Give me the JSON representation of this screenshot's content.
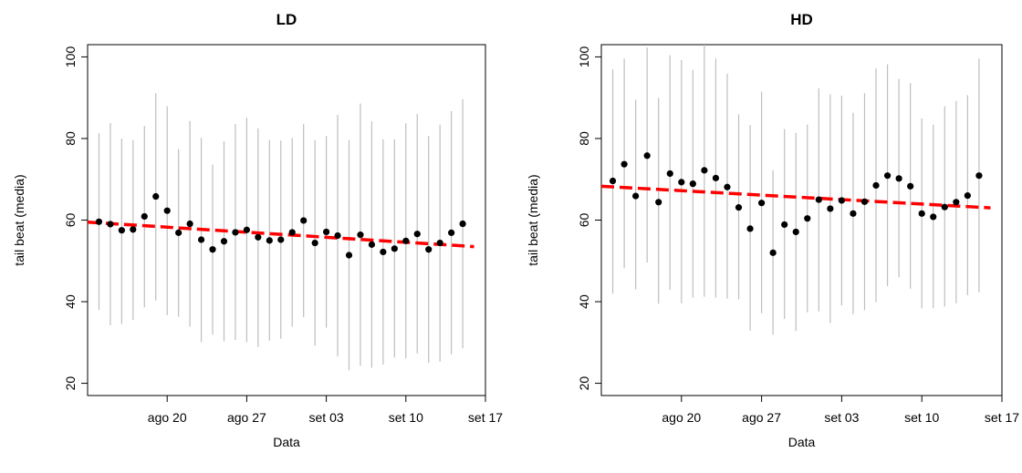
{
  "chart_data": [
    {
      "type": "scatter",
      "title": "LD",
      "xlabel": "Data",
      "ylabel": "tail beat (media)",
      "ylim": [
        17,
        103
      ],
      "xlim": [
        "2015-08-13",
        "2015-09-17"
      ],
      "yticks": [
        20,
        40,
        60,
        80,
        100
      ],
      "xticks": [
        {
          "date": "2015-08-20",
          "label": "ago 20"
        },
        {
          "date": "2015-08-27",
          "label": "ago 27"
        },
        {
          "date": "2015-09-03",
          "label": "set 03"
        },
        {
          "date": "2015-09-10",
          "label": "set 10"
        },
        {
          "date": "2015-09-17",
          "label": "set 17"
        }
      ],
      "grid": false,
      "colors": {
        "points": "#000000",
        "range": "#bebebe",
        "trend": "#ff0000"
      },
      "points": [
        {
          "date": "2015-08-14",
          "mean": 59.6,
          "low": 38.0,
          "high": 81.3
        },
        {
          "date": "2015-08-15",
          "mean": 59.0,
          "low": 34.2,
          "high": 83.8
        },
        {
          "date": "2015-08-16",
          "mean": 57.5,
          "low": 34.5,
          "high": 80.0
        },
        {
          "date": "2015-08-17",
          "mean": 57.7,
          "low": 35.5,
          "high": 79.6
        },
        {
          "date": "2015-08-18",
          "mean": 60.9,
          "low": 38.6,
          "high": 83.1
        },
        {
          "date": "2015-08-19",
          "mean": 65.8,
          "low": 40.3,
          "high": 91.1
        },
        {
          "date": "2015-08-20",
          "mean": 62.3,
          "low": 36.7,
          "high": 87.9
        },
        {
          "date": "2015-08-21",
          "mean": 56.9,
          "low": 36.3,
          "high": 77.4
        },
        {
          "date": "2015-08-22",
          "mean": 59.1,
          "low": 33.9,
          "high": 84.3
        },
        {
          "date": "2015-08-23",
          "mean": 55.2,
          "low": 30.1,
          "high": 80.2
        },
        {
          "date": "2015-08-24",
          "mean": 52.8,
          "low": 31.9,
          "high": 73.6
        },
        {
          "date": "2015-08-25",
          "mean": 54.8,
          "low": 30.3,
          "high": 79.3
        },
        {
          "date": "2015-08-26",
          "mean": 57.0,
          "low": 30.6,
          "high": 83.6
        },
        {
          "date": "2015-08-27",
          "mean": 57.6,
          "low": 30.1,
          "high": 85.1
        },
        {
          "date": "2015-08-28",
          "mean": 55.8,
          "low": 28.9,
          "high": 82.5
        },
        {
          "date": "2015-08-29",
          "mean": 55.0,
          "low": 30.5,
          "high": 79.6
        },
        {
          "date": "2015-08-30",
          "mean": 55.2,
          "low": 30.9,
          "high": 79.5
        },
        {
          "date": "2015-08-31",
          "mean": 57.0,
          "low": 33.9,
          "high": 80.1
        },
        {
          "date": "2015-09-01",
          "mean": 59.9,
          "low": 36.2,
          "high": 83.6
        },
        {
          "date": "2015-09-02",
          "mean": 54.4,
          "low": 29.2,
          "high": 79.6
        },
        {
          "date": "2015-09-03",
          "mean": 57.1,
          "low": 33.6,
          "high": 80.6
        },
        {
          "date": "2015-09-04",
          "mean": 56.2,
          "low": 26.6,
          "high": 85.8
        },
        {
          "date": "2015-09-05",
          "mean": 51.4,
          "low": 23.2,
          "high": 79.6
        },
        {
          "date": "2015-09-06",
          "mean": 56.4,
          "low": 24.3,
          "high": 88.6
        },
        {
          "date": "2015-09-07",
          "mean": 54.0,
          "low": 23.8,
          "high": 84.2
        },
        {
          "date": "2015-09-08",
          "mean": 52.2,
          "low": 24.6,
          "high": 79.8
        },
        {
          "date": "2015-09-09",
          "mean": 53.0,
          "low": 26.3,
          "high": 79.8
        },
        {
          "date": "2015-09-10",
          "mean": 54.9,
          "low": 26.1,
          "high": 83.7
        },
        {
          "date": "2015-09-11",
          "mean": 56.6,
          "low": 27.3,
          "high": 86.0
        },
        {
          "date": "2015-09-12",
          "mean": 52.8,
          "low": 25.0,
          "high": 80.6
        },
        {
          "date": "2015-09-13",
          "mean": 54.4,
          "low": 25.3,
          "high": 83.4
        },
        {
          "date": "2015-09-14",
          "mean": 56.9,
          "low": 27.1,
          "high": 86.7
        },
        {
          "date": "2015-09-15",
          "mean": 59.1,
          "low": 28.6,
          "high": 89.6
        }
      ],
      "trend": {
        "start": {
          "date": "2015-08-13",
          "value": 59.5
        },
        "end": {
          "date": "2015-09-16",
          "value": 53.5
        },
        "style": "dashed"
      }
    },
    {
      "type": "scatter",
      "title": "HD",
      "xlabel": "Data",
      "ylabel": "tail beat (media)",
      "ylim": [
        17,
        103
      ],
      "xlim": [
        "2015-08-13",
        "2015-09-17"
      ],
      "yticks": [
        20,
        40,
        60,
        80,
        100
      ],
      "xticks": [
        {
          "date": "2015-08-20",
          "label": "ago 20"
        },
        {
          "date": "2015-08-27",
          "label": "ago 27"
        },
        {
          "date": "2015-09-03",
          "label": "set 03"
        },
        {
          "date": "2015-09-10",
          "label": "set 10"
        },
        {
          "date": "2015-09-17",
          "label": "set 17"
        }
      ],
      "grid": false,
      "colors": {
        "points": "#000000",
        "range": "#bebebe",
        "trend": "#ff0000"
      },
      "points": [
        {
          "date": "2015-08-14",
          "mean": 69.6,
          "low": 42.0,
          "high": 96.9
        },
        {
          "date": "2015-08-15",
          "mean": 73.7,
          "low": 48.2,
          "high": 99.6
        },
        {
          "date": "2015-08-16",
          "mean": 65.9,
          "low": 43.0,
          "high": 89.5
        },
        {
          "date": "2015-08-17",
          "mean": 75.8,
          "low": 49.6,
          "high": 102.3
        },
        {
          "date": "2015-08-18",
          "mean": 64.4,
          "low": 39.5,
          "high": 89.9
        },
        {
          "date": "2015-08-19",
          "mean": 71.4,
          "low": 42.9,
          "high": 100.4
        },
        {
          "date": "2015-08-20",
          "mean": 69.3,
          "low": 39.6,
          "high": 99.2
        },
        {
          "date": "2015-08-21",
          "mean": 68.9,
          "low": 41.0,
          "high": 96.8
        },
        {
          "date": "2015-08-22",
          "mean": 72.2,
          "low": 41.2,
          "high": 103.0
        },
        {
          "date": "2015-08-23",
          "mean": 70.3,
          "low": 41.0,
          "high": 99.6
        },
        {
          "date": "2015-08-24",
          "mean": 68.1,
          "low": 40.8,
          "high": 95.9
        },
        {
          "date": "2015-08-25",
          "mean": 63.1,
          "low": 40.6,
          "high": 85.9
        },
        {
          "date": "2015-08-26",
          "mean": 57.9,
          "low": 32.9,
          "high": 83.3
        },
        {
          "date": "2015-08-27",
          "mean": 64.2,
          "low": 37.2,
          "high": 91.5
        },
        {
          "date": "2015-08-28",
          "mean": 52.0,
          "low": 31.9,
          "high": 72.2
        },
        {
          "date": "2015-08-29",
          "mean": 58.9,
          "low": 35.8,
          "high": 82.3
        },
        {
          "date": "2015-08-30",
          "mean": 57.1,
          "low": 32.8,
          "high": 81.4
        },
        {
          "date": "2015-08-31",
          "mean": 60.4,
          "low": 37.4,
          "high": 83.4
        },
        {
          "date": "2015-09-01",
          "mean": 65.0,
          "low": 37.6,
          "high": 92.3
        },
        {
          "date": "2015-09-02",
          "mean": 62.8,
          "low": 34.8,
          "high": 90.8
        },
        {
          "date": "2015-09-03",
          "mean": 64.8,
          "low": 39.1,
          "high": 90.5
        },
        {
          "date": "2015-09-04",
          "mean": 61.6,
          "low": 36.9,
          "high": 86.3
        },
        {
          "date": "2015-09-05",
          "mean": 64.5,
          "low": 37.9,
          "high": 91.1
        },
        {
          "date": "2015-09-06",
          "mean": 68.5,
          "low": 39.9,
          "high": 97.2
        },
        {
          "date": "2015-09-07",
          "mean": 70.9,
          "low": 43.8,
          "high": 98.2
        },
        {
          "date": "2015-09-08",
          "mean": 70.2,
          "low": 46.0,
          "high": 94.6
        },
        {
          "date": "2015-09-09",
          "mean": 68.3,
          "low": 43.2,
          "high": 93.6
        },
        {
          "date": "2015-09-10",
          "mean": 61.6,
          "low": 38.4,
          "high": 84.9
        },
        {
          "date": "2015-09-11",
          "mean": 60.8,
          "low": 38.4,
          "high": 83.4
        },
        {
          "date": "2015-09-12",
          "mean": 63.2,
          "low": 38.8,
          "high": 87.9
        },
        {
          "date": "2015-09-13",
          "mean": 64.4,
          "low": 39.6,
          "high": 89.2
        },
        {
          "date": "2015-09-14",
          "mean": 66.0,
          "low": 41.6,
          "high": 90.6
        },
        {
          "date": "2015-09-15",
          "mean": 70.9,
          "low": 42.3,
          "high": 99.6
        }
      ],
      "trend": {
        "start": {
          "date": "2015-08-13",
          "value": 68.3
        },
        "end": {
          "date": "2015-09-16",
          "value": 63.0
        },
        "style": "dashed"
      }
    }
  ]
}
